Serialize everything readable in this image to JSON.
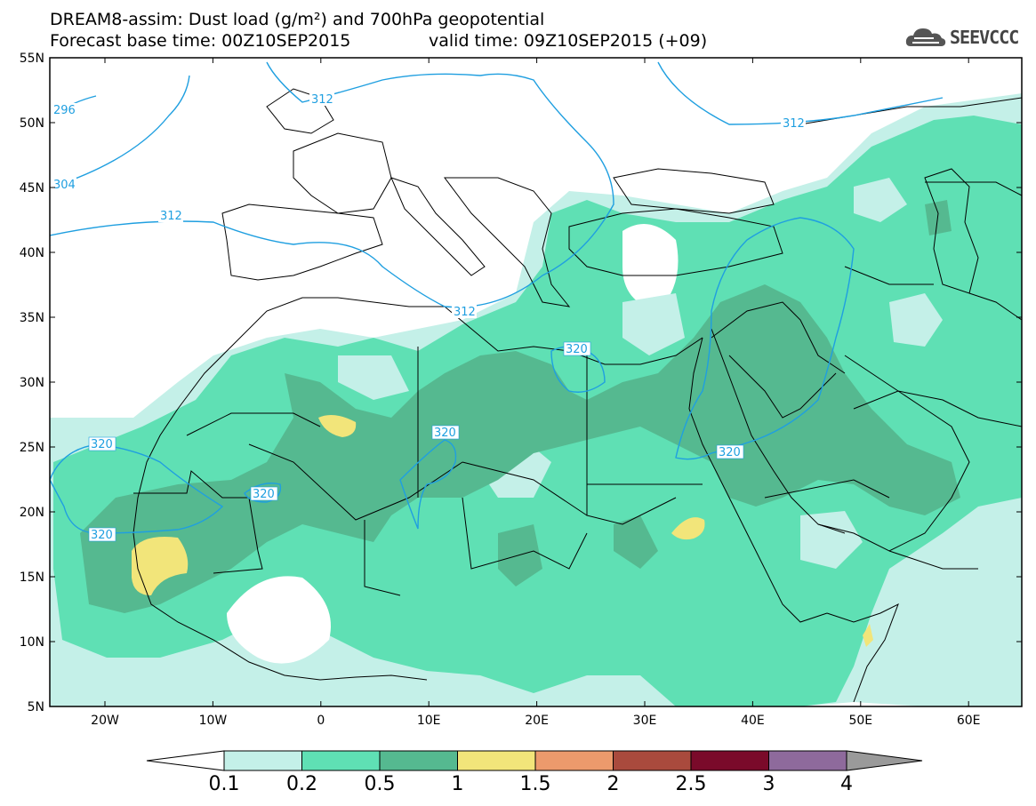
{
  "header": {
    "title_line1": "DREAM8-assim: Dust load (g/m²) and 700hPa geopotential",
    "title_line2a": "Forecast base time: 00Z10SEP2015",
    "title_line2b": "valid time: 09Z10SEP2015 (+09)"
  },
  "logo": {
    "text": "SEEVCCC",
    "icon": "cloud-logo-icon"
  },
  "axes": {
    "lat_labels": [
      "55N",
      "50N",
      "45N",
      "40N",
      "35N",
      "30N",
      "25N",
      "20N",
      "15N",
      "10N",
      "5N"
    ],
    "lon_labels": [
      "20W",
      "10W",
      "0",
      "10E",
      "20E",
      "30E",
      "40E",
      "50E",
      "60E"
    ],
    "lon_range": [
      -25,
      65
    ],
    "lat_range": [
      5,
      55
    ]
  },
  "contours": {
    "labels": [
      "296",
      "304",
      "312",
      "312",
      "312",
      "312",
      "320",
      "320",
      "320",
      "320",
      "320",
      "320"
    ]
  },
  "colorbar": {
    "ticks": [
      "0.1",
      "0.2",
      "0.5",
      "1",
      "1.5",
      "2",
      "2.5",
      "3",
      "4"
    ],
    "colors": [
      "#c4f0e8",
      "#5fe0b4",
      "#55b990",
      "#f2e57a",
      "#ec9a6c",
      "#a94a3d",
      "#7a0a2a",
      "#8e6a9c",
      "#9a9a9a"
    ]
  }
}
